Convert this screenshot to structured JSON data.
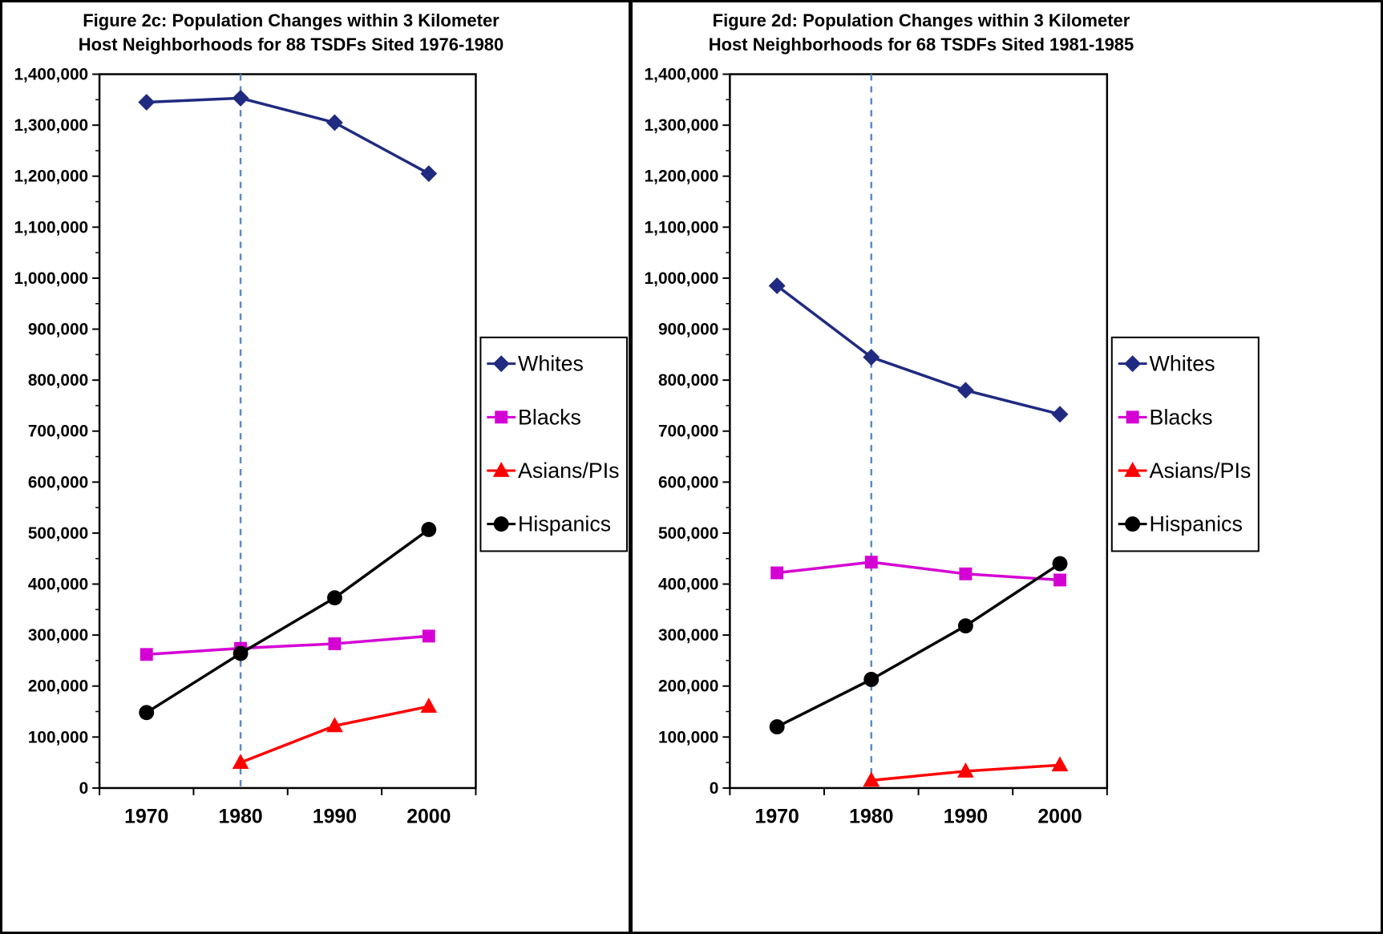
{
  "page": {
    "background": "#FFFFFF"
  },
  "chart_data": [
    {
      "type": "line",
      "title_line1": "Figure 2c: Population Changes within 3 Kilometer",
      "title_line2": "Host Neighborhoods for 88 TSDFs Sited 1976-1980",
      "categories": [
        "1970",
        "1980",
        "1990",
        "2000"
      ],
      "xlabel": "",
      "ylabel": "",
      "ylim": [
        0,
        1400000
      ],
      "y_major_tick": 100000,
      "y_tick_labels": [
        "0",
        "100,000",
        "200,000",
        "300,000",
        "400,000",
        "500,000",
        "600,000",
        "700,000",
        "800,000",
        "900,000",
        "1,000,000",
        "1,100,000",
        "1,200,000",
        "1,300,000",
        "1,400,000"
      ],
      "grid": false,
      "legend_position": "right",
      "vline": {
        "at_category": "1980",
        "style": "dashed",
        "color": "#5B8AC6"
      },
      "series": [
        {
          "name": "Whites",
          "marker": "diamond",
          "color": "#1F2A80",
          "values": [
            1345000,
            1353000,
            1305000,
            1205000
          ]
        },
        {
          "name": "Blacks",
          "marker": "square",
          "color": "#D400D4",
          "values": [
            262000,
            274000,
            283000,
            298000
          ]
        },
        {
          "name": "Asians/PIs",
          "marker": "triangle",
          "color": "#FF0000",
          "values": [
            null,
            50000,
            122000,
            160000
          ]
        },
        {
          "name": "Hispanics",
          "marker": "circle",
          "color": "#000000",
          "values": [
            148000,
            264000,
            373000,
            507000
          ]
        }
      ]
    },
    {
      "type": "line",
      "title_line1": "Figure 2d: Population Changes within 3 Kilometer",
      "title_line2": "Host Neighborhoods for 68 TSDFs Sited 1981-1985",
      "categories": [
        "1970",
        "1980",
        "1990",
        "2000"
      ],
      "xlabel": "",
      "ylabel": "",
      "ylim": [
        0,
        1400000
      ],
      "y_major_tick": 100000,
      "y_tick_labels": [
        "0",
        "100,000",
        "200,000",
        "300,000",
        "400,000",
        "500,000",
        "600,000",
        "700,000",
        "800,000",
        "900,000",
        "1,000,000",
        "1,100,000",
        "1,200,000",
        "1,300,000",
        "1,400,000"
      ],
      "grid": false,
      "legend_position": "right",
      "vline": {
        "at_category": "1980",
        "style": "dashed",
        "color": "#5B8AC6"
      },
      "series": [
        {
          "name": "Whites",
          "marker": "diamond",
          "color": "#1F2A80",
          "values": [
            985000,
            845000,
            780000,
            733000
          ]
        },
        {
          "name": "Blacks",
          "marker": "square",
          "color": "#D400D4",
          "values": [
            422000,
            443000,
            420000,
            408000
          ]
        },
        {
          "name": "Asians/PIs",
          "marker": "triangle",
          "color": "#FF0000",
          "values": [
            null,
            15000,
            33000,
            45000
          ]
        },
        {
          "name": "Hispanics",
          "marker": "circle",
          "color": "#000000",
          "values": [
            120000,
            213000,
            318000,
            440000
          ]
        }
      ]
    }
  ]
}
